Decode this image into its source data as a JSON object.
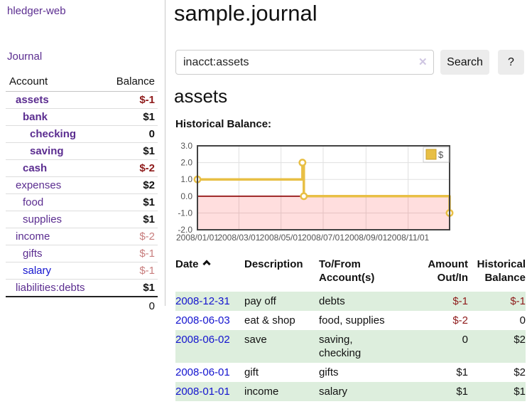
{
  "sidebar": {
    "brand": "hledger-web",
    "journal_label": "Journal",
    "accounts_table": {
      "headers": {
        "account": "Account",
        "balance": "Balance"
      },
      "rows": [
        {
          "label": "assets",
          "indent": 1,
          "current": true,
          "balance": "$-1",
          "balance_tone": "neg",
          "link_tone": "purple"
        },
        {
          "label": "bank",
          "indent": 2,
          "current": true,
          "balance": "$1",
          "balance_tone": "pos",
          "link_tone": "purple"
        },
        {
          "label": "checking",
          "indent": 3,
          "current": true,
          "balance": "0",
          "balance_tone": "pos",
          "link_tone": "purple"
        },
        {
          "label": "saving",
          "indent": 3,
          "current": true,
          "balance": "$1",
          "balance_tone": "pos",
          "link_tone": "purple"
        },
        {
          "label": "cash",
          "indent": 2,
          "current": true,
          "balance": "$-2",
          "balance_tone": "neg",
          "link_tone": "purple"
        },
        {
          "label": "expenses",
          "indent": 1,
          "current": false,
          "balance": "$2",
          "balance_tone": "pos",
          "link_tone": "purple"
        },
        {
          "label": "food",
          "indent": 2,
          "current": false,
          "balance": "$1",
          "balance_tone": "pos",
          "link_tone": "purple"
        },
        {
          "label": "supplies",
          "indent": 2,
          "current": false,
          "balance": "$1",
          "balance_tone": "pos",
          "link_tone": "purple"
        },
        {
          "label": "income",
          "indent": 1,
          "current": false,
          "balance": "$-2",
          "balance_tone": "neg-soft",
          "link_tone": "purple"
        },
        {
          "label": "gifts",
          "indent": 2,
          "current": false,
          "balance": "$-1",
          "balance_tone": "neg-soft",
          "link_tone": "purple"
        },
        {
          "label": "salary",
          "indent": 2,
          "current": false,
          "balance": "$-1",
          "balance_tone": "neg-soft",
          "link_tone": "blue"
        },
        {
          "label": "liabilities:debts",
          "indent": 1,
          "current": false,
          "balance": "$1",
          "balance_tone": "pos",
          "link_tone": "purple"
        }
      ],
      "total": "0"
    }
  },
  "main": {
    "title": "sample.journal",
    "search": {
      "value": "inacct:assets",
      "clear_icon": "✕",
      "button_label": "Search",
      "help_label": "?"
    },
    "account_heading": "assets",
    "chart_label": "Historical Balance:",
    "register_table": {
      "headers": {
        "date": "Date",
        "description": "Description",
        "accounts": "To/From Account(s)",
        "amount": "Amount Out/In",
        "balance": "Historical Balance"
      },
      "sort": {
        "column": "date",
        "direction": "ascending"
      },
      "rows": [
        {
          "date": "2008-12-31",
          "description": "pay off",
          "accounts": "debts",
          "amount": "$-1",
          "amount_tone": "neg",
          "balance": "$-1",
          "balance_tone": "neg",
          "shaded": true
        },
        {
          "date": "2008-06-03",
          "description": "eat & shop",
          "accounts": "food, supplies",
          "amount": "$-2",
          "amount_tone": "neg",
          "balance": "0",
          "balance_tone": "pos",
          "shaded": false
        },
        {
          "date": "2008-06-02",
          "description": "save",
          "accounts": "saving,\nchecking",
          "amount": "0",
          "amount_tone": "pos",
          "balance": "$2",
          "balance_tone": "pos",
          "shaded": true
        },
        {
          "date": "2008-06-01",
          "description": "gift",
          "accounts": "gifts",
          "amount": "$1",
          "amount_tone": "pos",
          "balance": "$2",
          "balance_tone": "pos",
          "shaded": false
        },
        {
          "date": "2008-01-01",
          "description": "income",
          "accounts": "salary",
          "amount": "$1",
          "amount_tone": "pos",
          "balance": "$1",
          "balance_tone": "pos",
          "shaded": true
        }
      ]
    }
  },
  "chart_data": {
    "type": "line",
    "style": "step-after",
    "title": "Historical Balance:",
    "series": [
      {
        "name": "$",
        "color": "#e8bf45",
        "points": [
          [
            "2008-01-01",
            1
          ],
          [
            "2008-06-01",
            2
          ],
          [
            "2008-06-03",
            0
          ],
          [
            "2008-12-31",
            -1
          ]
        ]
      }
    ],
    "x_range": [
      "2008-01-01",
      "2008-12-31"
    ],
    "x_tick_labels": [
      "2008/01/01",
      "2008/03/01",
      "2008/05/01",
      "2008/07/01",
      "2008/09/01",
      "2008/11/01"
    ],
    "y_tick_labels": [
      "3.0",
      "2.0",
      "1.0",
      "0.0",
      "-1.0",
      "-2.0"
    ],
    "ylim": [
      -2,
      3
    ],
    "grid": true,
    "legend_position": "top-right",
    "legend_labels": [
      "$"
    ]
  },
  "colors": {
    "link_purple": "#5b2d90",
    "link_blue": "#1313cf",
    "negative_strong": "#8e1a1a",
    "negative_soft": "#c87d7d",
    "row_highlight_green": "#ddeedd",
    "series_gold": "#e8bf45",
    "negative_region_pink": "rgba(255,0,0,0.13)",
    "zero_line_dark_red": "#8b0000",
    "button_gray": "#ececec"
  }
}
